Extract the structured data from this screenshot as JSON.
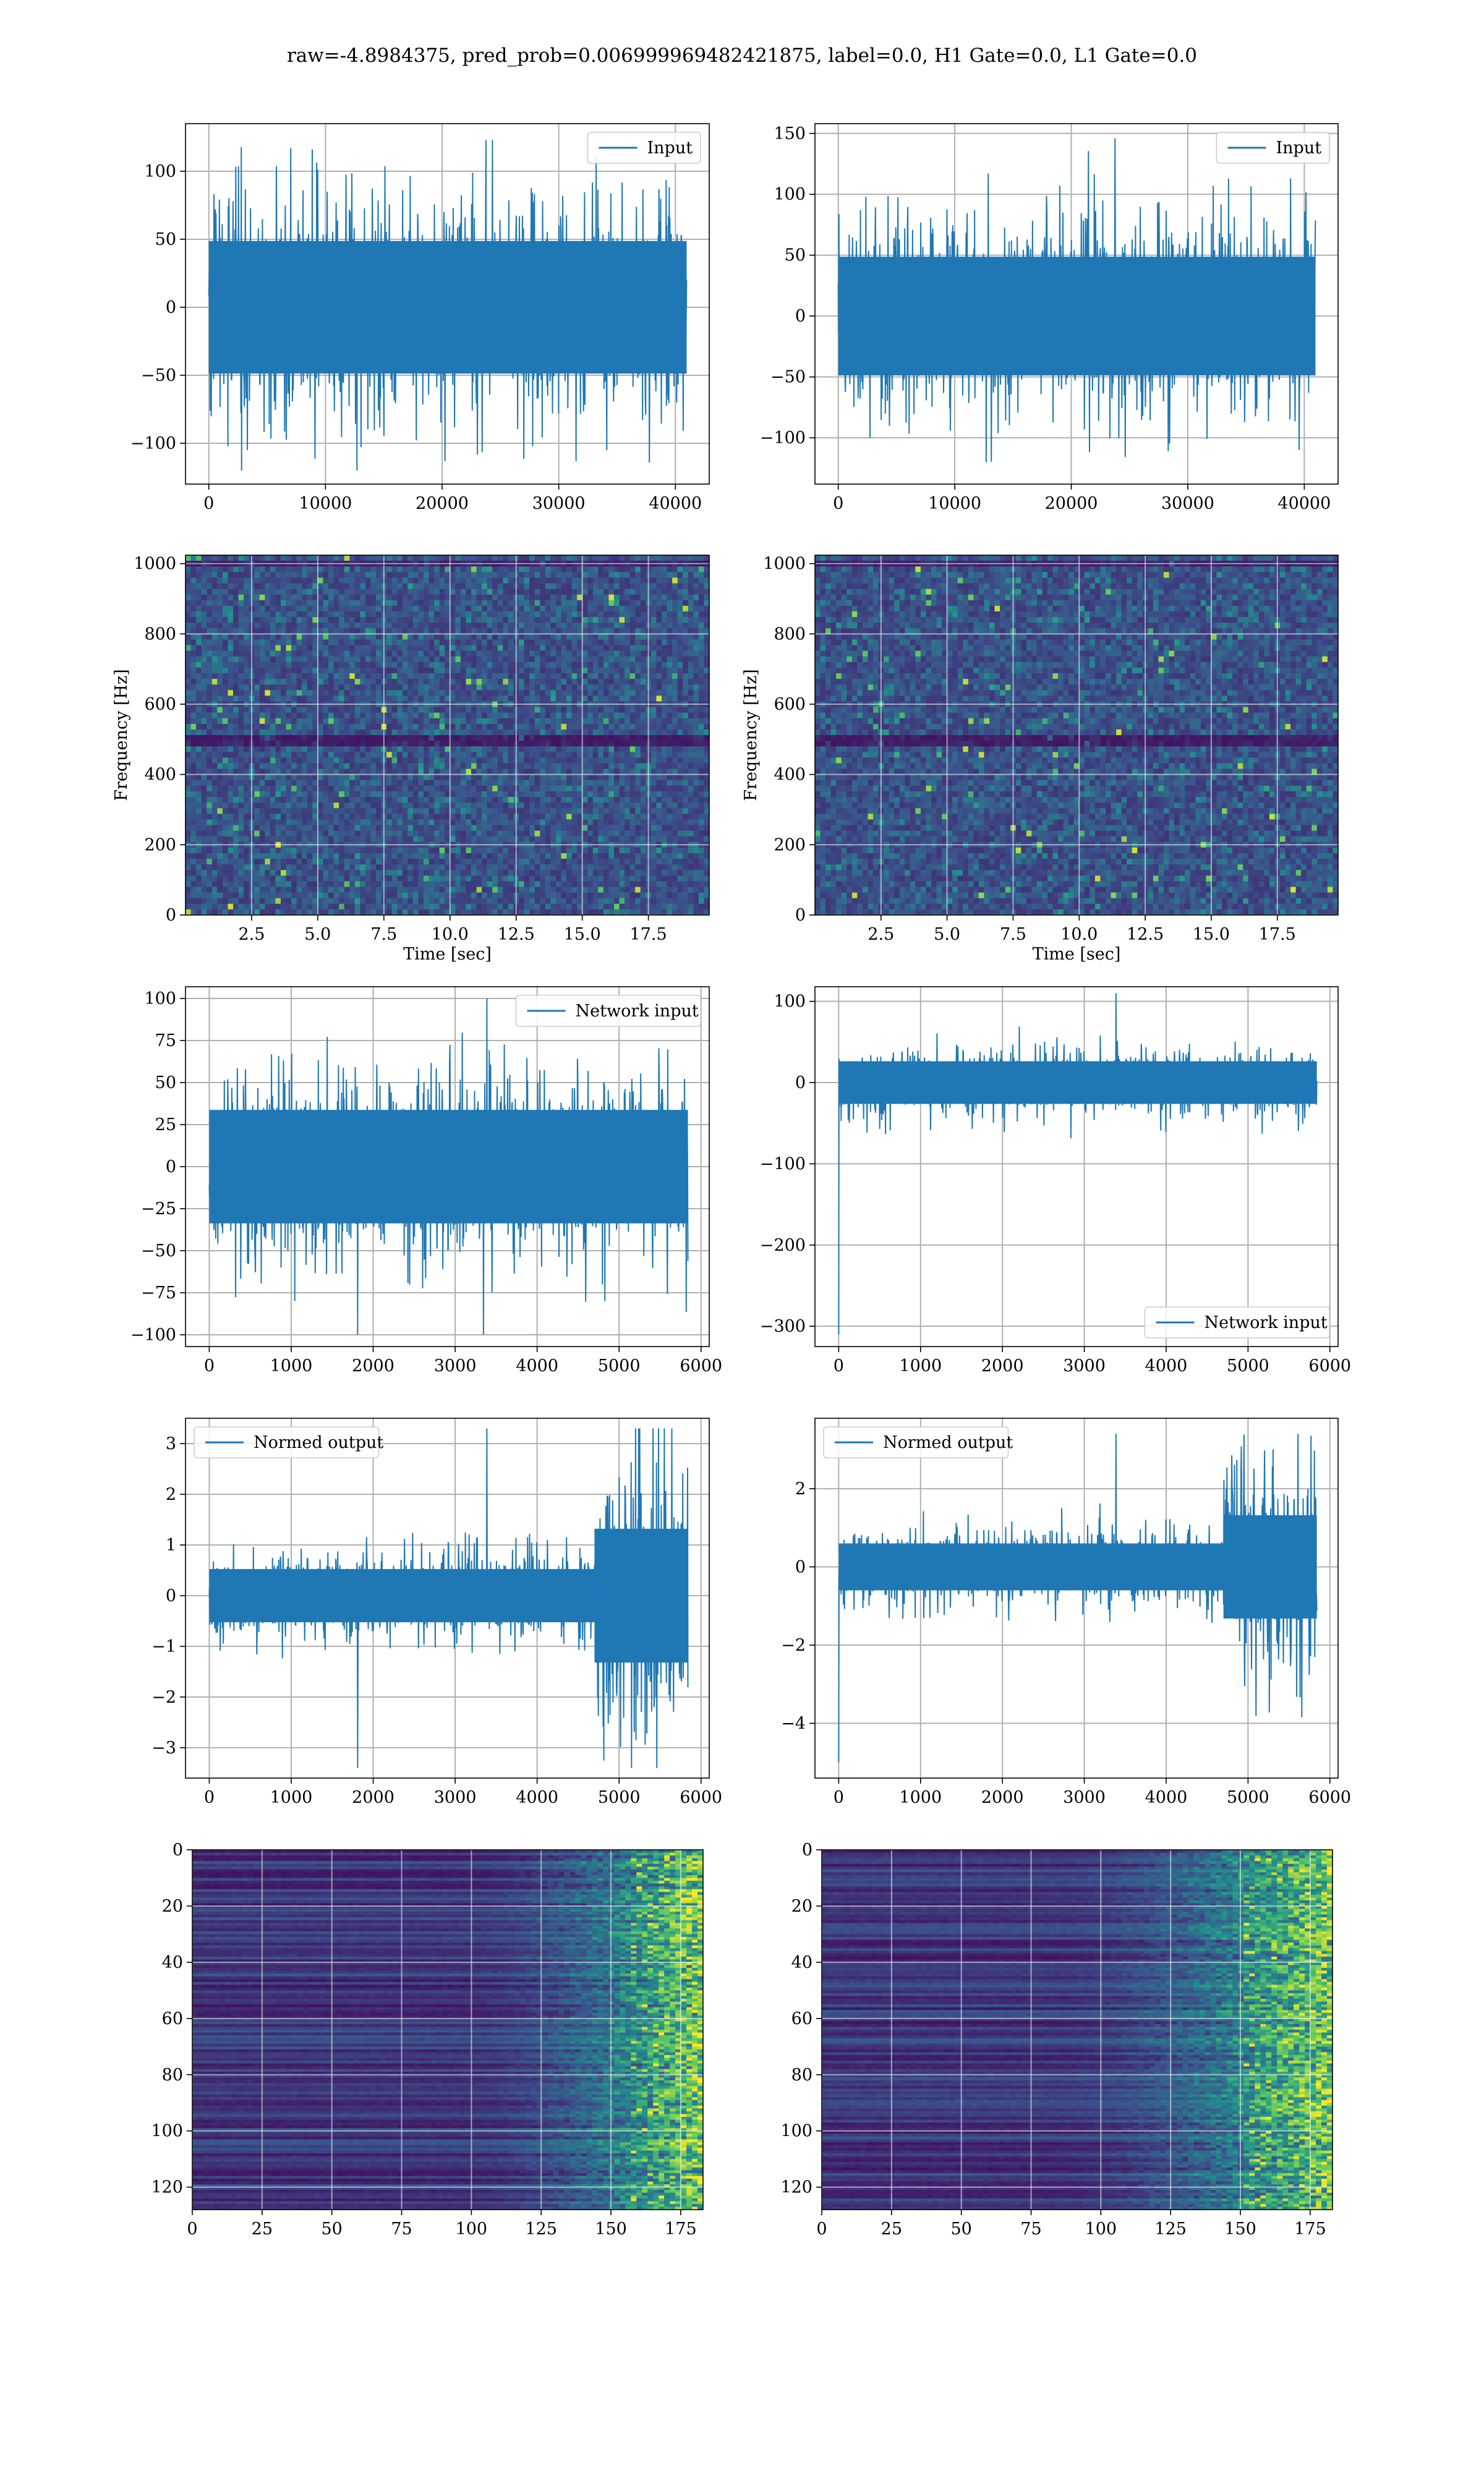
{
  "suptitle": "raw=-4.8984375, pred_prob=0.006999969482421875, label=0.0, H1 Gate=0.0, L1 Gate=0.0",
  "colors": {
    "line": "#1f77b4",
    "grid": "#b0b0b0",
    "viridis": [
      "#440154",
      "#3b528b",
      "#21918c",
      "#5ec962",
      "#fde725"
    ]
  },
  "chart_data": [
    {
      "id": "h1-input",
      "type": "line",
      "legend": "Input",
      "legend_loc": "upper right",
      "xlim": [
        -2000,
        42900
      ],
      "ylim": [
        -130,
        135
      ],
      "xticks": [
        0,
        10000,
        20000,
        30000,
        40000
      ],
      "yticks": [
        -100,
        -50,
        0,
        50,
        100
      ],
      "series": [
        {
          "name": "Input",
          "x_range": [
            0,
            40960
          ],
          "band": [
            -65,
            65
          ],
          "extreme_min": -120,
          "extreme_max": 123
        }
      ],
      "grid": true
    },
    {
      "id": "l1-input",
      "type": "line",
      "legend": "Input",
      "legend_loc": "upper right",
      "xlim": [
        -2000,
        42900
      ],
      "ylim": [
        -138,
        158
      ],
      "xticks": [
        0,
        10000,
        20000,
        30000,
        40000
      ],
      "yticks": [
        -100,
        -50,
        0,
        50,
        100,
        150
      ],
      "series": [
        {
          "name": "Input",
          "x_range": [
            0,
            40960
          ],
          "band": [
            -65,
            65
          ],
          "extreme_min": -120,
          "extreme_max": 146
        }
      ],
      "grid": true
    },
    {
      "id": "h1-spectrogram",
      "type": "heatmap",
      "colormap": "viridis",
      "xlabel": "Time [sec]",
      "ylabel": "Frequency [Hz]",
      "xlim": [
        0,
        19.8
      ],
      "ylim": [
        0,
        1024
      ],
      "xticks": [
        2.5,
        5.0,
        7.5,
        10.0,
        12.5,
        15.0,
        17.5
      ],
      "yticks": [
        0,
        200,
        400,
        600,
        800,
        1000
      ],
      "features": [
        {
          "kind": "dark-band",
          "y_range": [
            480,
            515
          ]
        },
        {
          "kind": "dark-band",
          "y_range": [
            995,
            1005
          ]
        }
      ],
      "grid": true
    },
    {
      "id": "l1-spectrogram",
      "type": "heatmap",
      "colormap": "viridis",
      "xlabel": "Time [sec]",
      "ylabel": "Frequency [Hz]",
      "xlim": [
        0,
        19.8
      ],
      "ylim": [
        0,
        1024
      ],
      "xticks": [
        2.5,
        5.0,
        7.5,
        10.0,
        12.5,
        15.0,
        17.5
      ],
      "yticks": [
        0,
        200,
        400,
        600,
        800,
        1000
      ],
      "features": [
        {
          "kind": "dark-band",
          "y_range": [
            480,
            515
          ]
        },
        {
          "kind": "dark-band",
          "y_range": [
            995,
            1005
          ]
        }
      ],
      "grid": true
    },
    {
      "id": "h1-network-input",
      "type": "line",
      "legend": "Network input",
      "legend_loc": "upper right",
      "xlim": [
        -290,
        6100
      ],
      "ylim": [
        -107,
        107
      ],
      "xticks": [
        0,
        1000,
        2000,
        3000,
        4000,
        5000,
        6000
      ],
      "yticks": [
        -100,
        -75,
        -50,
        -25,
        0,
        25,
        50,
        75,
        100
      ],
      "series": [
        {
          "name": "Network input",
          "x_range": [
            0,
            5840
          ],
          "band": [
            -45,
            45
          ],
          "extreme_min": -100,
          "extreme_max": 100
        }
      ],
      "grid": true
    },
    {
      "id": "l1-network-input",
      "type": "line",
      "legend": "Network input",
      "legend_loc": "lower right",
      "xlim": [
        -290,
        6100
      ],
      "ylim": [
        -325,
        118
      ],
      "xticks": [
        0,
        1000,
        2000,
        3000,
        4000,
        5000,
        6000
      ],
      "yticks": [
        -300,
        -200,
        -100,
        0,
        100
      ],
      "series": [
        {
          "name": "Network input",
          "x_range": [
            0,
            5840
          ],
          "band": [
            -35,
            35
          ],
          "extreme_min": -310,
          "extreme_max": 110
        }
      ],
      "grid": true
    },
    {
      "id": "h1-normed-output",
      "type": "line",
      "legend": "Normed output",
      "legend_loc": "upper left",
      "xlim": [
        -290,
        6100
      ],
      "ylim": [
        -3.6,
        3.5
      ],
      "xticks": [
        0,
        1000,
        2000,
        3000,
        4000,
        5000,
        6000
      ],
      "yticks": [
        -3,
        -2,
        -1,
        0,
        1,
        2,
        3
      ],
      "series": [
        {
          "name": "Normed output",
          "x_range": [
            0,
            5840
          ],
          "band": [
            -0.7,
            0.7
          ],
          "late_band": [
            -2.2,
            2.2
          ],
          "late_start": 4700,
          "extreme_min": -3.4,
          "extreme_max": 3.3
        }
      ],
      "grid": true
    },
    {
      "id": "l1-normed-output",
      "type": "line",
      "legend": "Normed output",
      "legend_loc": "upper left",
      "xlim": [
        -290,
        6100
      ],
      "ylim": [
        -5.4,
        3.8
      ],
      "xticks": [
        0,
        1000,
        2000,
        3000,
        4000,
        5000,
        6000
      ],
      "yticks": [
        -4,
        -2,
        0,
        2
      ],
      "series": [
        {
          "name": "Normed output",
          "x_range": [
            0,
            5840
          ],
          "band": [
            -0.8,
            0.8
          ],
          "late_band": [
            -2.2,
            2.2
          ],
          "late_start": 4700,
          "extreme_min": -5.0,
          "extreme_max": 3.4
        }
      ],
      "grid": true
    },
    {
      "id": "h1-feature-map",
      "type": "heatmap",
      "colormap": "viridis",
      "xlim": [
        0,
        183
      ],
      "ylim": [
        128,
        0
      ],
      "xticks": [
        0,
        25,
        50,
        75,
        100,
        125,
        150,
        175
      ],
      "yticks": [
        0,
        20,
        40,
        60,
        80,
        100,
        120
      ],
      "features": [
        {
          "kind": "bright-region",
          "x_range": [
            140,
            183
          ]
        }
      ],
      "grid": true
    },
    {
      "id": "l1-feature-map",
      "type": "heatmap",
      "colormap": "viridis",
      "xlim": [
        0,
        183
      ],
      "ylim": [
        128,
        0
      ],
      "xticks": [
        0,
        25,
        50,
        75,
        100,
        125,
        150,
        175
      ],
      "yticks": [
        0,
        20,
        40,
        60,
        80,
        100,
        120
      ],
      "features": [
        {
          "kind": "bright-region",
          "x_range": [
            125,
            183
          ]
        }
      ],
      "grid": true
    }
  ]
}
